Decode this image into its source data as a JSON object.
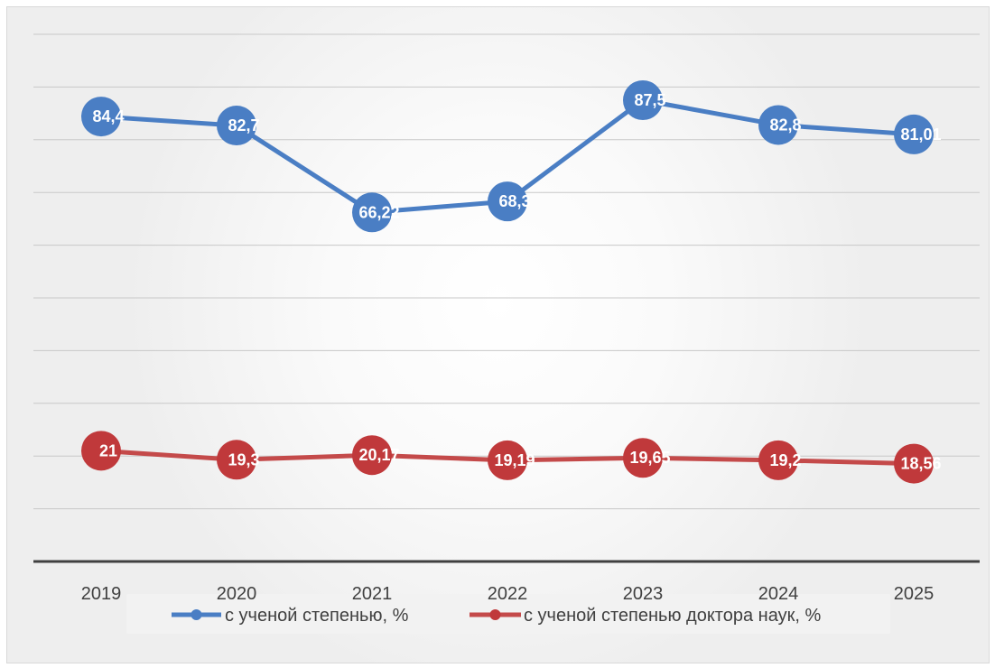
{
  "chart_data": {
    "type": "line",
    "categories": [
      "2019",
      "2020",
      "2021",
      "2022",
      "2023",
      "2024",
      "2025"
    ],
    "series": [
      {
        "name": "с ученой степенью, %",
        "values": [
          84.4,
          82.7,
          66.22,
          68.3,
          87.5,
          82.8,
          81.01
        ],
        "labels": [
          "84,4",
          "82,7",
          "66,22",
          "68,3",
          "87,5",
          "82,8",
          "81,01"
        ],
        "color": "#4a7ec4",
        "marker_color": "#4a7ec4"
      },
      {
        "name": "с ученой степенью доктора наук, %",
        "values": [
          21,
          19.3,
          20.17,
          19.19,
          19.65,
          19.2,
          18.56
        ],
        "labels": [
          "21",
          "19,3",
          "20,17",
          "19,19",
          "19,65",
          "19,2",
          "18,56"
        ],
        "color": "#c44a4a",
        "marker_color": "#c0393b"
      }
    ],
    "ylim": [
      0,
      100
    ],
    "y_gridlines": true,
    "y_tick_labels_shown": false,
    "legend_position": "bottom",
    "title": "",
    "xlabel": "",
    "ylabel": ""
  }
}
